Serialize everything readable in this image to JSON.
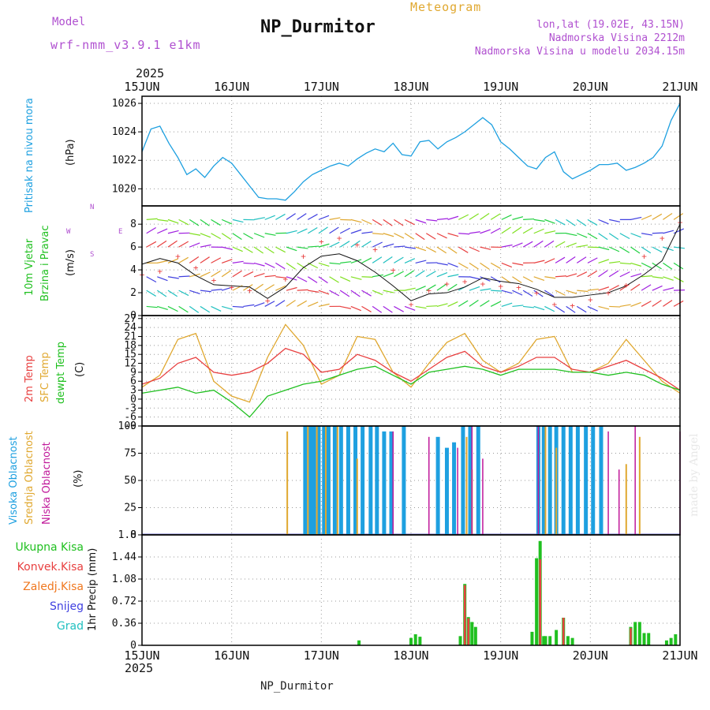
{
  "header": {
    "model_label": "Model",
    "model_name": "wrf-nmm_v3.9.1 e1km",
    "product": "Meteogram",
    "station": "NP_Durmitor",
    "lonlat": "lon,lat (19.02E, 43.15N)",
    "elevation": "Nadmorska Visina 2212m",
    "model_elevation": "Nadmorska Visina u modelu 2034.15m",
    "footer_station": "NP_Durmitor",
    "credit": "made by Angel"
  },
  "colors": {
    "pressure": "#1ea0e0",
    "temp2m": "#e84040",
    "sfc": "#e0a830",
    "dewpt": "#20c020",
    "high_cloud": "#1ea0e0",
    "mid_cloud": "#e0a830",
    "low_cloud": "#c0189a",
    "total_precip": "#20c020",
    "conv_precip": "#e84040",
    "frz_precip": "#f07820",
    "snow": "#4040e0",
    "hail": "#20c0c0",
    "wind_label": "#20c020",
    "compass": "#b050d0"
  },
  "time_axis": {
    "year_top": "2025",
    "year_bottom": "2025",
    "ticks": [
      "15JUN",
      "16JUN",
      "17JUN",
      "18JUN",
      "19JUN",
      "20JUN",
      "21JUN"
    ]
  },
  "compass": {
    "n": "N",
    "s": "S",
    "w": "W",
    "e": "E"
  },
  "panels": {
    "pressure": {
      "label": "Pritisak na nivou mora",
      "unit": "(hPa)"
    },
    "wind": {
      "label_1": "10m Vjetar",
      "label_2": "Brzina i Pravac",
      "unit": "(m/s)"
    },
    "temp": {
      "label_1": "2m Temp",
      "label_2": "SFC Temp",
      "label_3": "dewpt Temp",
      "unit": "(C)"
    },
    "cloud": {
      "label_1": "Visoka Oblacnost",
      "label_2": "Srednja Oblacnost",
      "label_3": "Niska Oblacnost",
      "unit": "(%)"
    },
    "precip": {
      "unit_label": "1hr Precip (mm)"
    }
  },
  "precip_legend": [
    "Ukupna Kisa",
    "Konvek.Kisa",
    "Zaledj.Kisa",
    "Snijeg",
    "Grad"
  ],
  "chart_data": [
    {
      "type": "line",
      "panel": "pressure",
      "x_unit": "days since 15JUN",
      "ylim": [
        1018.8,
        1026.5
      ],
      "yticks": [
        1020,
        1022,
        1024,
        1026
      ],
      "grid": true,
      "series": [
        {
          "x": [
            0,
            0.1,
            0.2,
            0.3,
            0.4,
            0.5,
            0.6,
            0.7,
            0.8,
            0.9,
            1.0,
            1.1,
            1.2,
            1.3,
            1.4,
            1.5,
            1.6,
            1.7,
            1.8,
            1.9,
            2.0,
            2.1,
            2.2,
            2.3,
            2.4,
            2.5,
            2.6,
            2.7,
            2.8,
            2.9,
            3.0,
            3.1,
            3.2,
            3.3,
            3.4,
            3.5,
            3.6,
            3.7,
            3.8,
            3.9,
            4.0,
            4.1,
            4.2,
            4.3,
            4.4,
            4.5,
            4.6,
            4.7,
            4.8,
            4.9,
            5.0,
            5.1,
            5.2,
            5.3,
            5.4,
            5.5,
            5.6,
            5.7,
            5.8,
            5.9,
            6.0
          ],
          "values": [
            1022.6,
            1024.2,
            1024.4,
            1023.2,
            1022.2,
            1021.0,
            1021.4,
            1020.8,
            1021.6,
            1022.2,
            1021.8,
            1021.0,
            1020.2,
            1019.4,
            1019.3,
            1019.3,
            1019.2,
            1019.8,
            1020.5,
            1021.0,
            1021.3,
            1021.6,
            1021.8,
            1021.6,
            1022.1,
            1022.5,
            1022.8,
            1022.6,
            1023.2,
            1022.4,
            1022.3,
            1023.3,
            1023.4,
            1022.8,
            1023.3,
            1023.6,
            1024.0,
            1024.5,
            1025.0,
            1024.5,
            1023.3,
            1022.8,
            1022.2,
            1021.6,
            1021.4,
            1022.2,
            1022.6,
            1021.2,
            1020.7,
            1021.0,
            1021.3,
            1021.7,
            1021.7,
            1021.8,
            1021.3,
            1021.5,
            1021.8,
            1022.2,
            1023.0,
            1024.8,
            1026.0
          ]
        }
      ]
    },
    {
      "type": "line",
      "panel": "wind",
      "x_unit": "days since 15JUN",
      "ylim": [
        0,
        9.6
      ],
      "yticks": [
        0,
        2,
        4,
        6,
        8
      ],
      "grid": true,
      "series": [
        {
          "name": "speed",
          "x": [
            0,
            0.2,
            0.4,
            0.6,
            0.8,
            1.0,
            1.2,
            1.4,
            1.6,
            1.8,
            2.0,
            2.2,
            2.4,
            2.6,
            2.8,
            3.0,
            3.2,
            3.4,
            3.6,
            3.8,
            4.0,
            4.2,
            4.4,
            4.6,
            4.8,
            5.0,
            5.2,
            5.4,
            5.6,
            5.8,
            6.0
          ],
          "values": [
            4.5,
            5.0,
            4.6,
            3.5,
            2.7,
            2.6,
            2.5,
            1.5,
            2.5,
            4.2,
            5.2,
            5.4,
            4.8,
            3.8,
            2.6,
            1.3,
            1.9,
            2.0,
            2.5,
            3.3,
            3.0,
            2.8,
            2.3,
            1.6,
            1.6,
            1.8,
            2.0,
            2.6,
            3.6,
            4.8,
            8.0
          ]
        },
        {
          "name": "gust",
          "x": [
            0,
            0.2,
            0.4,
            0.6,
            0.8,
            1.0,
            1.2,
            1.4,
            1.6,
            1.8,
            2.0,
            2.2,
            2.4,
            2.6,
            2.8,
            3.0,
            3.2,
            3.4,
            3.6,
            3.8,
            4.0,
            4.2,
            4.4,
            4.6,
            4.8,
            5.0,
            5.2,
            5.4,
            5.6,
            5.8,
            6.0
          ],
          "values": [
            3.6,
            3.9,
            5.2,
            4.2,
            3.1,
            2.5,
            2.2,
            1.3,
            3.2,
            5.2,
            6.5,
            6.8,
            6.2,
            5.8,
            4.0,
            1.0,
            2.2,
            2.8,
            3.0,
            2.8,
            2.6,
            2.5,
            2.0,
            1.0,
            0.9,
            1.4,
            2.0,
            2.7,
            5.2,
            6.8,
            8.2
          ]
        }
      ]
    },
    {
      "type": "line",
      "panel": "temperature",
      "x_unit": "days since 15JUN",
      "ylim": [
        -9,
        28
      ],
      "yticks": [
        -9,
        -6,
        -3,
        0,
        3,
        6,
        9,
        12,
        15,
        18,
        21,
        24,
        27
      ],
      "grid": true,
      "series": [
        {
          "name": "2m Temp",
          "x": [
            0,
            0.2,
            0.4,
            0.6,
            0.8,
            1.0,
            1.2,
            1.4,
            1.6,
            1.8,
            2.0,
            2.2,
            2.4,
            2.6,
            2.8,
            3.0,
            3.2,
            3.4,
            3.6,
            3.8,
            4.0,
            4.2,
            4.4,
            4.6,
            4.8,
            5.0,
            5.2,
            5.4,
            5.6,
            5.8,
            6.0
          ],
          "values": [
            5,
            7,
            12,
            14,
            9,
            8,
            9,
            12,
            17,
            15,
            9,
            10,
            15,
            13,
            9,
            6,
            10,
            14,
            16,
            11,
            9,
            11,
            14,
            14,
            10,
            9,
            11,
            13,
            10,
            7,
            3
          ]
        },
        {
          "name": "SFC Temp",
          "x": [
            0,
            0.2,
            0.4,
            0.6,
            0.8,
            1.0,
            1.2,
            1.4,
            1.6,
            1.8,
            2.0,
            2.2,
            2.4,
            2.6,
            2.8,
            3.0,
            3.2,
            3.4,
            3.6,
            3.8,
            4.0,
            4.2,
            4.4,
            4.6,
            4.8,
            5.0,
            5.2,
            5.4,
            5.6,
            5.8,
            6.0
          ],
          "values": [
            4,
            8,
            20,
            22,
            6,
            1,
            -1,
            14,
            25,
            18,
            5,
            8,
            21,
            20,
            9,
            4,
            12,
            19,
            22,
            13,
            9,
            12,
            20,
            21,
            9,
            9,
            12,
            20,
            13,
            6,
            2
          ]
        },
        {
          "name": "dewpt Temp",
          "x": [
            0,
            0.2,
            0.4,
            0.6,
            0.8,
            1.0,
            1.2,
            1.4,
            1.6,
            1.8,
            2.0,
            2.2,
            2.4,
            2.6,
            2.8,
            3.0,
            3.2,
            3.4,
            3.6,
            3.8,
            4.0,
            4.2,
            4.4,
            4.6,
            4.8,
            5.0,
            5.2,
            5.4,
            5.6,
            5.8,
            6.0
          ],
          "values": [
            2,
            3,
            4,
            2,
            3,
            -1,
            -6,
            1,
            3,
            5,
            6,
            8,
            10,
            11,
            8,
            5,
            9,
            10,
            11,
            10,
            8,
            10,
            10,
            10,
            9,
            9,
            8,
            9,
            8,
            5,
            3
          ]
        }
      ]
    },
    {
      "type": "bar",
      "panel": "cloud",
      "x_unit": "days since 15JUN",
      "ylim": [
        0,
        100
      ],
      "yticks": [
        0,
        25,
        50,
        75,
        100
      ],
      "grid": true,
      "series": [
        {
          "name": "Visoka Oblacnost",
          "x": [
            1.82,
            1.88,
            1.92,
            1.97,
            2.03,
            2.08,
            2.15,
            2.22,
            2.3,
            2.38,
            2.46,
            2.55,
            2.62,
            2.7,
            2.78,
            2.92,
            3.3,
            3.4,
            3.48,
            3.58,
            3.66,
            3.75,
            4.42,
            4.48,
            4.55,
            4.62,
            4.7,
            4.78,
            4.86,
            4.95,
            5.03,
            5.12
          ],
          "values": [
            100,
            100,
            100,
            100,
            100,
            100,
            100,
            100,
            100,
            100,
            100,
            100,
            100,
            95,
            95,
            100,
            90,
            80,
            85,
            100,
            100,
            100,
            100,
            100,
            100,
            100,
            100,
            100,
            100,
            100,
            100,
            100
          ]
        },
        {
          "name": "Srednja Oblacnost",
          "x": [
            1.62,
            1.85,
            1.95,
            2.05,
            2.18,
            2.4,
            3.62,
            3.68,
            4.5,
            4.62,
            5.4,
            5.55
          ],
          "values": [
            95,
            100,
            100,
            100,
            100,
            70,
            90,
            60,
            100,
            80,
            65,
            90
          ]
        },
        {
          "name": "Niska Oblacnost",
          "x": [
            2.8,
            3.2,
            3.52,
            3.68,
            3.8,
            4.42,
            5.2,
            5.32,
            5.5,
            6.0
          ],
          "values": [
            95,
            90,
            80,
            100,
            70,
            100,
            95,
            60,
            100,
            95
          ]
        }
      ]
    },
    {
      "type": "bar",
      "panel": "precip",
      "x_unit": "days since 15JUN",
      "ylim": [
        0,
        1.8
      ],
      "yticks": [
        0,
        0.36,
        0.72,
        1.08,
        1.44,
        1.8
      ],
      "grid": true,
      "series": [
        {
          "name": "Ukupna Kisa",
          "x": [
            2.42,
            3.0,
            3.05,
            3.1,
            3.55,
            3.6,
            3.64,
            3.68,
            3.72,
            4.35,
            4.4,
            4.44,
            4.48,
            4.5,
            4.55,
            4.62,
            4.7,
            4.75,
            4.8,
            5.45,
            5.5,
            5.55,
            5.6,
            5.65,
            5.85,
            5.9,
            5.95
          ],
          "values": [
            0.08,
            0.12,
            0.18,
            0.14,
            0.15,
            1.0,
            0.46,
            0.38,
            0.3,
            0.22,
            1.42,
            1.7,
            0.15,
            0.15,
            0.15,
            0.25,
            0.45,
            0.15,
            0.12,
            0.3,
            0.38,
            0.38,
            0.2,
            0.2,
            0.08,
            0.12,
            0.18
          ]
        },
        {
          "name": "Konvek.Kisa",
          "x": [
            3.6,
            3.64,
            4.44,
            4.7,
            5.45
          ],
          "values": [
            0.98,
            0.44,
            1.4,
            0.45,
            0.28
          ]
        }
      ]
    }
  ]
}
